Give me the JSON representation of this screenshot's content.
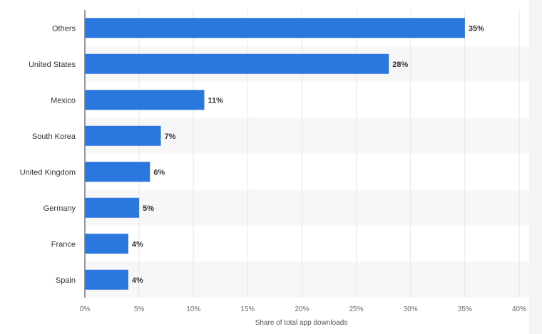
{
  "chart_data": {
    "type": "bar",
    "orientation": "horizontal",
    "categories": [
      "Others",
      "United States",
      "Mexico",
      "South Korea",
      "United Kingdom",
      "Germany",
      "France",
      "Spain"
    ],
    "values": [
      35,
      28,
      11,
      7,
      6,
      5,
      4,
      4
    ],
    "value_labels": [
      "35%",
      "28%",
      "11%",
      "7%",
      "6%",
      "5%",
      "4%",
      "4%"
    ],
    "xlabel": "Share of total app downloads",
    "xlim": [
      0,
      40
    ],
    "xticks": [
      0,
      5,
      10,
      15,
      20,
      25,
      30,
      35,
      40
    ],
    "xtick_labels": [
      "0%",
      "5%",
      "10%",
      "15%",
      "20%",
      "25%",
      "30%",
      "35%",
      "40%"
    ],
    "grid": true,
    "colors": {
      "bar": "#2a77dd",
      "band": "#f7f7f7",
      "grid": "#e6e6e6",
      "axis": "#777777"
    }
  }
}
